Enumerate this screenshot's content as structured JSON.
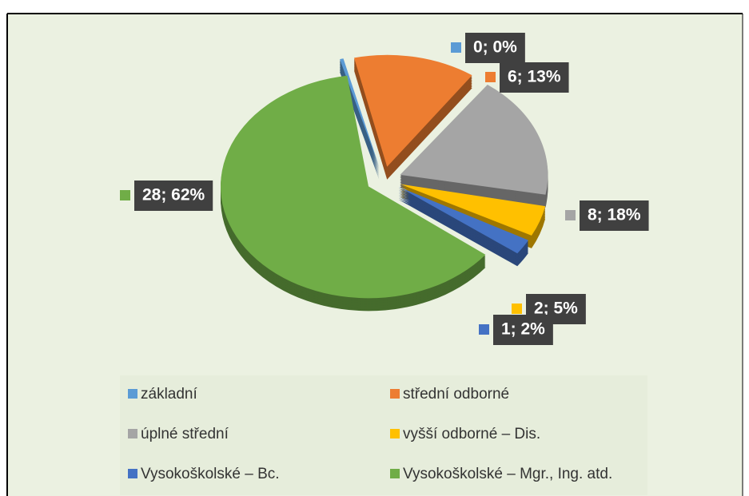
{
  "chart_data": {
    "type": "pie",
    "categories": [
      "základní",
      "střední odborné",
      "úplné střední",
      "vyšší odborné – Dis.",
      "Vysokoškolské – Bc.",
      "Vysokoškolské – Mgr., Ing. atd."
    ],
    "values": [
      0,
      6,
      8,
      2,
      1,
      28
    ],
    "value_labels": [
      "0; 0%",
      "6; 13%",
      "8; 18%",
      "2; 5%",
      "1; 2%",
      "28; 62%"
    ],
    "colors": [
      "#5b9bd5",
      "#ed7d31",
      "#a5a5a5",
      "#ffc000",
      "#4472c4",
      "#70ad47"
    ],
    "legend": "bottom"
  }
}
